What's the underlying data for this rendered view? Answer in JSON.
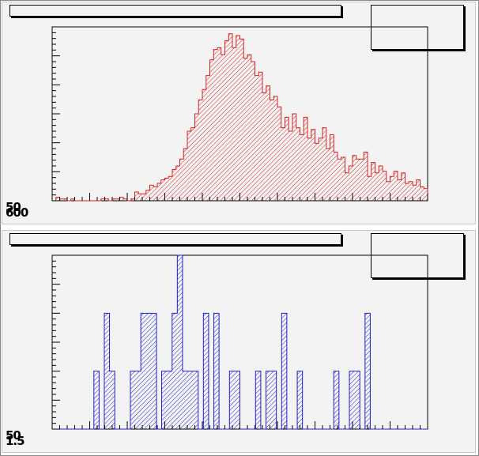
{
  "chart_data": [
    {
      "type": "histogram",
      "title": "",
      "xlabel": "",
      "ylabel": "",
      "xlim": [
        0,
        10
      ],
      "ylim": [
        0,
        100
      ],
      "y_axis_label_glyphs": [
        "50",
        "600",
        "00"
      ],
      "line_color": "#d62020",
      "fill_pattern": "hatched",
      "bin_heights": [
        0,
        2,
        1,
        1,
        0,
        1,
        0,
        0,
        0,
        0,
        0,
        0,
        0,
        1,
        1,
        0,
        1,
        1,
        2,
        1,
        0,
        1,
        5,
        4,
        4,
        6,
        9,
        8,
        10,
        12,
        13,
        14,
        18,
        20,
        24,
        30,
        40,
        42,
        50,
        58,
        64,
        72,
        81,
        87,
        88,
        84,
        92,
        96,
        88,
        95,
        93,
        82,
        84,
        80,
        72,
        74,
        62,
        66,
        58,
        60,
        54,
        42,
        48,
        40,
        50,
        42,
        38,
        48,
        36,
        41,
        33,
        36,
        42,
        30,
        38,
        28,
        24,
        25,
        16,
        20,
        26,
        24,
        24,
        28,
        14,
        22,
        16,
        20,
        17,
        11,
        14,
        17,
        12,
        16,
        10,
        11,
        9,
        12,
        8,
        7
      ],
      "stats_box": {
        "entries": []
      }
    },
    {
      "type": "histogram",
      "title": "",
      "xlabel": "",
      "ylabel": "",
      "xlim": [
        0,
        10
      ],
      "ylim": [
        0,
        6
      ],
      "y_axis_label_glyphs": [
        "50",
        "0",
        "1.5"
      ],
      "line_color": "#2020c8",
      "fill_pattern": "hatched",
      "bin_heights": [
        0,
        0,
        0,
        0,
        0,
        0,
        0,
        0,
        2,
        0,
        4,
        2,
        0,
        0,
        0,
        2,
        2,
        4,
        4,
        4,
        0,
        2,
        2,
        4,
        6,
        2,
        2,
        2,
        0,
        4,
        0,
        4,
        0,
        0,
        2,
        2,
        0,
        0,
        0,
        2,
        0,
        2,
        2,
        0,
        4,
        0,
        0,
        2,
        0,
        0,
        0,
        0,
        0,
        0,
        2,
        0,
        0,
        2,
        2,
        0,
        4,
        0,
        0,
        0,
        0,
        0,
        0,
        0,
        0,
        0,
        0,
        0
      ],
      "stats_box": {
        "entries": []
      }
    }
  ]
}
